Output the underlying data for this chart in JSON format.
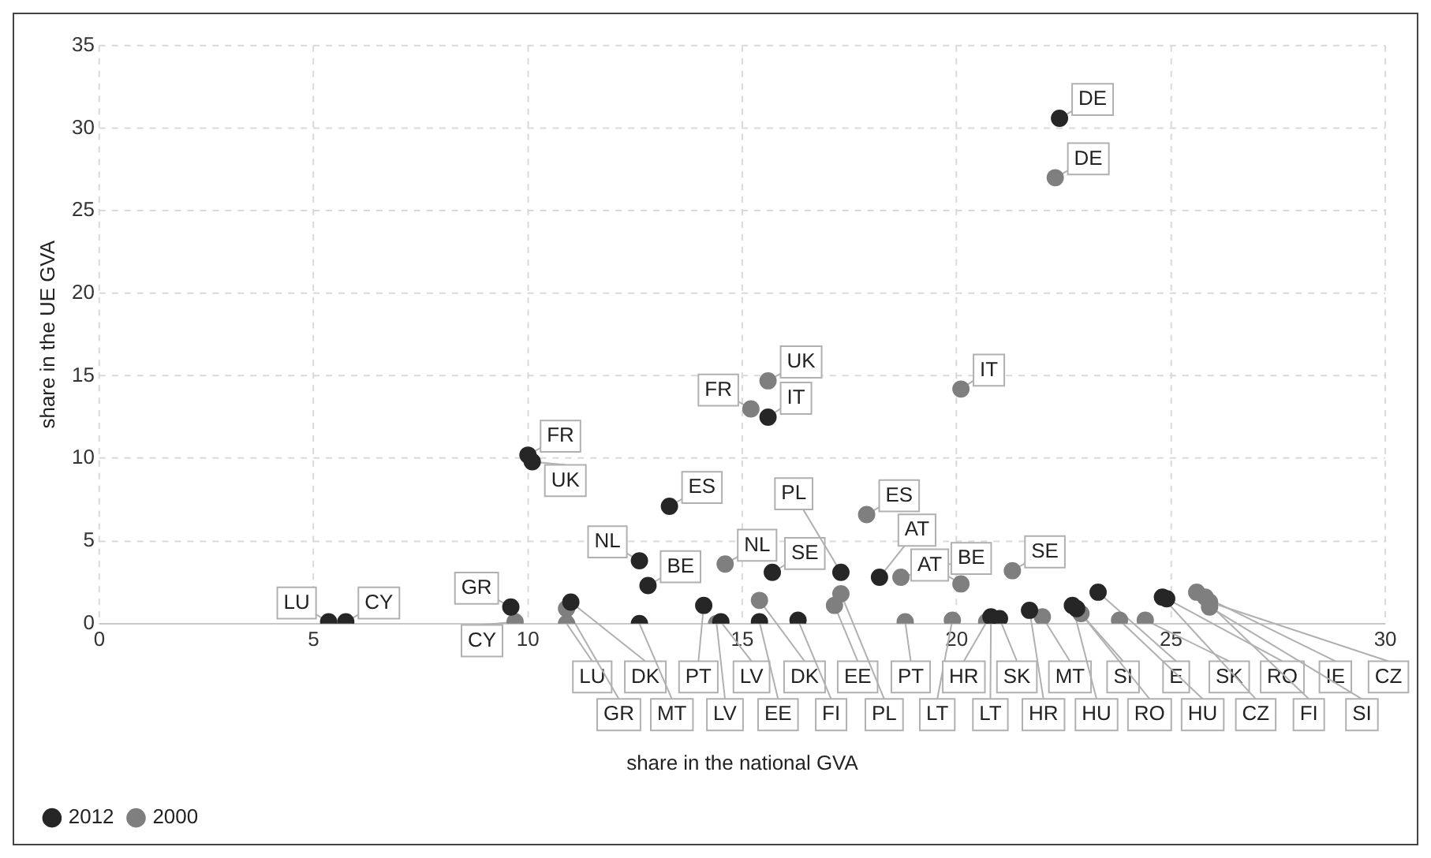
{
  "chart_data": {
    "type": "scatter",
    "xlabel": "share in the national GVA",
    "ylabel": "share in the UE GVA",
    "xlim": [
      0,
      30
    ],
    "xticks": [
      0,
      5,
      10,
      15,
      20,
      25,
      30
    ],
    "ylim": [
      0,
      35
    ],
    "yticks": [
      0,
      5,
      10,
      15,
      20,
      25,
      30,
      35
    ],
    "grid": true,
    "legend": "bottom left",
    "marker": "circle",
    "series": [
      {
        "name": "2012",
        "color": "#262626",
        "x": [
          5.35,
          5.75,
          9.6,
          11.0,
          12.8,
          12.6,
          13.3,
          10.0,
          10.1,
          15.6,
          22.4,
          15.7,
          17.3,
          18.2,
          12.6,
          14.1,
          14.5,
          15.4,
          16.3,
          21.7,
          20.8,
          22.8,
          21.0,
          24.9,
          22.7,
          24.8,
          23.3
        ],
        "values": [
          0.1,
          0.1,
          1.0,
          1.3,
          2.3,
          3.8,
          7.1,
          10.2,
          9.8,
          12.5,
          30.6,
          3.1,
          3.1,
          2.8,
          0.0,
          1.1,
          0.1,
          0.1,
          0.2,
          0.8,
          0.4,
          0.9,
          0.3,
          1.5,
          1.1,
          1.6,
          1.9
        ],
        "value_labels": [
          "LU",
          "CY",
          "GR",
          "DK",
          "BE",
          "NL",
          "ES",
          "FR",
          "UK",
          "IT",
          "DE",
          "SE",
          "PL",
          "AT",
          "MT",
          "PT",
          "LV",
          "EE",
          "FI",
          "HR",
          "LT",
          "SI",
          "SK",
          "RO",
          "HU",
          "CZ",
          "E"
        ]
      },
      {
        "name": "2000",
        "color": "#7f7f7f",
        "x": [
          10.9,
          9.7,
          10.9,
          15.4,
          18.7,
          14.6,
          17.9,
          15.2,
          15.6,
          20.1,
          22.3,
          21.3,
          17.3,
          20.1,
          22.0,
          18.8,
          14.4,
          17.15,
          25.6,
          20.7,
          19.9,
          25.9,
          24.4,
          22.9,
          23.8,
          25.9,
          25.8
        ],
        "values": [
          0.0,
          0.1,
          0.9,
          1.4,
          2.8,
          3.6,
          6.6,
          13.0,
          14.7,
          14.2,
          27.0,
          3.2,
          1.8,
          2.4,
          0.4,
          0.1,
          0.0,
          1.1,
          1.9,
          0.1,
          0.2,
          1.0,
          0.2,
          0.6,
          0.2,
          1.3,
          1.6
        ],
        "value_labels": [
          "LU",
          "CY",
          "GR",
          "DK",
          "BE",
          "NL",
          "ES",
          "FR",
          "UK",
          "IT",
          "DE",
          "SE",
          "PL",
          "AT",
          "MT",
          "PT",
          "LV",
          "EE",
          "FI",
          "HR",
          "LT",
          "SI",
          "SK",
          "RO",
          "HU",
          "CZ",
          "IE"
        ]
      }
    ]
  }
}
